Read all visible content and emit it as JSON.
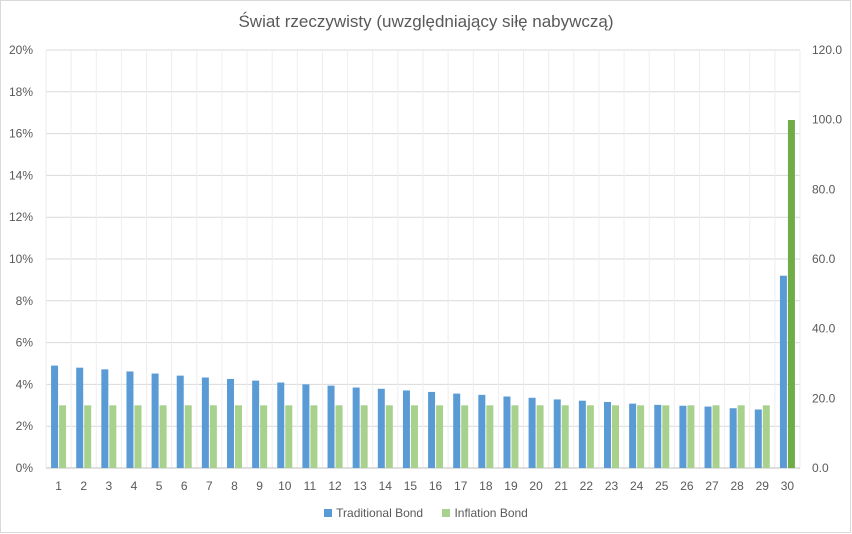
{
  "title": "Świat rzeczywisty (uwzględniający siłę nabywczą)",
  "colors": {
    "traditional": "#5b9bd5",
    "inflation": "#a9d18e",
    "accent_bar": "#70ad47",
    "grid": "#d9d9d9",
    "text": "#595959"
  },
  "legend": {
    "traditional": "Traditional Bond",
    "inflation": "Inflation Bond"
  },
  "chart_data": {
    "type": "bar",
    "title": "Świat rzeczywisty (uwzględniający siłę nabywczą)",
    "categories": [
      "1",
      "2",
      "3",
      "4",
      "5",
      "6",
      "7",
      "8",
      "9",
      "10",
      "11",
      "12",
      "13",
      "14",
      "15",
      "16",
      "17",
      "18",
      "19",
      "20",
      "21",
      "22",
      "23",
      "24",
      "25",
      "26",
      "27",
      "28",
      "29",
      "30"
    ],
    "series": [
      {
        "name": "Traditional Bond",
        "axis": "left",
        "values": [
          4.9,
          4.8,
          4.72,
          4.62,
          4.52,
          4.42,
          4.33,
          4.26,
          4.18,
          4.09,
          4.0,
          3.94,
          3.85,
          3.79,
          3.71,
          3.64,
          3.56,
          3.5,
          3.42,
          3.36,
          3.28,
          3.22,
          3.16,
          3.08,
          3.02,
          2.98,
          2.94,
          2.86,
          2.8,
          9.2
        ]
      },
      {
        "name": "Inflation Bond",
        "axis": "left",
        "values": [
          3.0,
          3.0,
          3.0,
          3.0,
          3.0,
          3.0,
          3.0,
          3.0,
          3.0,
          3.0,
          3.0,
          3.0,
          3.0,
          3.0,
          3.0,
          3.0,
          3.0,
          3.0,
          3.0,
          3.0,
          3.0,
          3.0,
          3.0,
          3.0,
          3.0,
          3.0,
          3.0,
          3.0,
          3.0,
          16.65
        ]
      }
    ],
    "y_left": {
      "ylim": [
        0,
        20
      ],
      "ticks": [
        "0%",
        "2%",
        "4%",
        "6%",
        "8%",
        "10%",
        "12%",
        "14%",
        "16%",
        "18%",
        "20%"
      ]
    },
    "y_right": {
      "ylim": [
        0,
        120
      ],
      "ticks": [
        "0.0",
        "20.0",
        "40.0",
        "60.0",
        "80.0",
        "100.0",
        "120.0"
      ]
    },
    "grid": true,
    "legend_position": "bottom"
  }
}
